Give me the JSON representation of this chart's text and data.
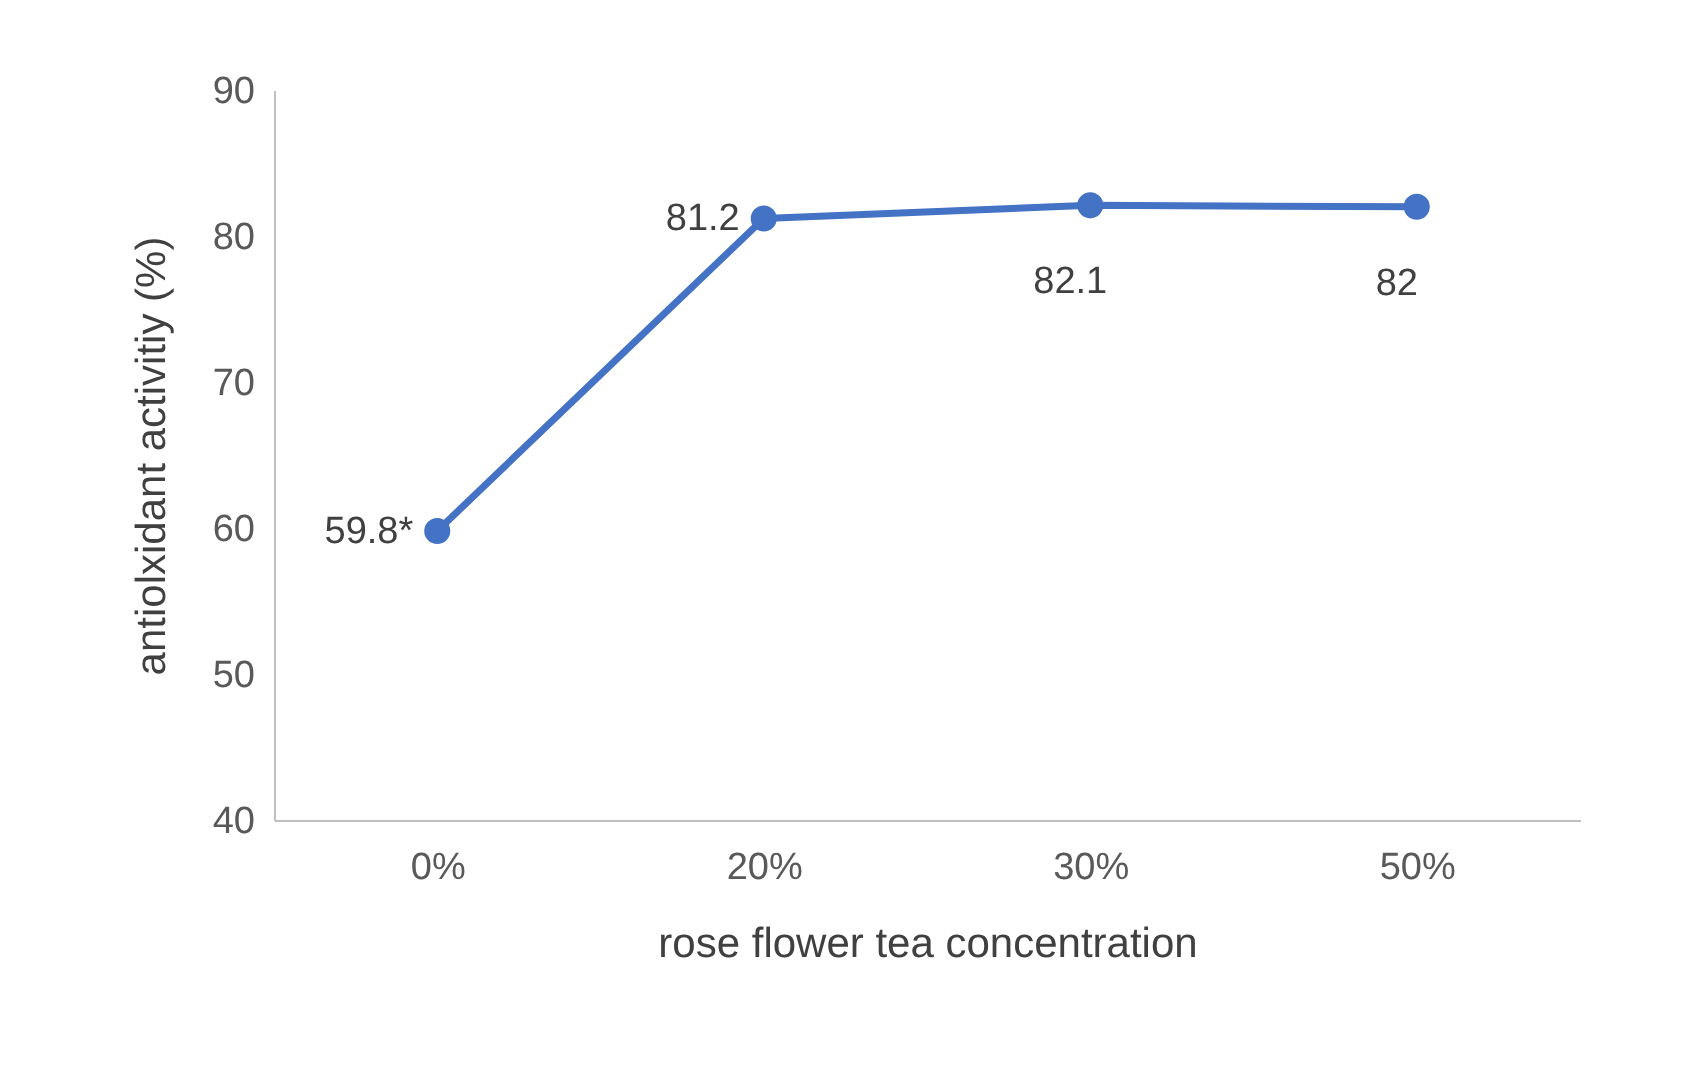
{
  "chart_data": {
    "type": "line",
    "xlabel": "rose flower tea concentration",
    "ylabel": "antiolxidant activitiy (%)",
    "categories": [
      "0%",
      "20%",
      "30%",
      "50%"
    ],
    "series": [
      {
        "color": "#4472c4",
        "values": [
          59.8,
          81.2,
          82.1,
          82
        ],
        "value_labels": [
          "59.8*",
          "81.2",
          "82.1",
          "82"
        ]
      }
    ],
    "ylim": [
      40,
      90
    ],
    "yticks": [
      40,
      50,
      60,
      70,
      80,
      90
    ],
    "grid": false,
    "marker": "circle",
    "line_style": "solid"
  }
}
